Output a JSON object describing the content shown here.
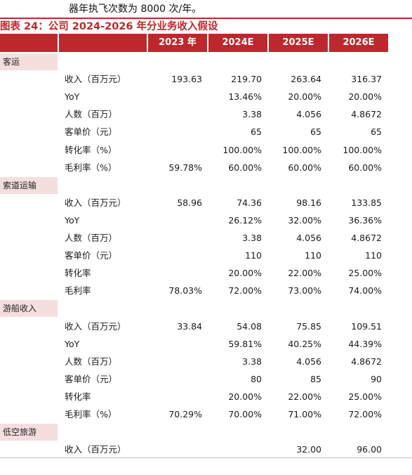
{
  "intro_text": "器年执飞次数为 8000 次/年。",
  "caption": "图表 24：公司 2024-2026 年分业务收入假设",
  "header": {
    "years": [
      "2023 年",
      "2024E",
      "2025E",
      "2026E"
    ]
  },
  "sections": [
    {
      "title": "客运",
      "rows": [
        {
          "label": "收入（百万元）",
          "values": [
            "193.63",
            "219.70",
            "263.64",
            "316.37"
          ]
        },
        {
          "label": "YoY",
          "values": [
            "",
            "13.46%",
            "20.00%",
            "20.00%"
          ]
        },
        {
          "label": "人数（百万）",
          "values": [
            "",
            "3.38",
            "4.056",
            "4.8672"
          ]
        },
        {
          "label": "客单价（元）",
          "values": [
            "",
            "65",
            "65",
            "65"
          ]
        },
        {
          "label": "转化率（%）",
          "values": [
            "",
            "100.00%",
            "100.00%",
            "100.00%"
          ]
        },
        {
          "label": "毛利率（%）",
          "values": [
            "59.78%",
            "60.00%",
            "60.00%",
            "60.00%"
          ]
        }
      ]
    },
    {
      "title": "索道运输",
      "rows": [
        {
          "label": "收入（百万元）",
          "values": [
            "58.96",
            "74.36",
            "98.16",
            "133.85"
          ]
        },
        {
          "label": "YoY",
          "values": [
            "",
            "26.12%",
            "32.00%",
            "36.36%"
          ]
        },
        {
          "label": "人数（百万）",
          "values": [
            "",
            "3.38",
            "4.056",
            "4.8672"
          ]
        },
        {
          "label": "客单价（元）",
          "values": [
            "",
            "110",
            "110",
            "110"
          ]
        },
        {
          "label": "转化率",
          "values": [
            "",
            "20.00%",
            "22.00%",
            "25.00%"
          ]
        },
        {
          "label": "毛利率",
          "values": [
            "78.03%",
            "72.00%",
            "73.00%",
            "74.00%"
          ]
        }
      ]
    },
    {
      "title": "游船收入",
      "rows": [
        {
          "label": "收入（百万元）",
          "values": [
            "33.84",
            "54.08",
            "75.85",
            "109.51"
          ]
        },
        {
          "label": "YoY",
          "values": [
            "",
            "59.81%",
            "40.25%",
            "44.39%"
          ]
        },
        {
          "label": "人数（百万）",
          "values": [
            "",
            "3.38",
            "4.056",
            "4.8672"
          ]
        },
        {
          "label": "客单价（元）",
          "values": [
            "",
            "80",
            "85",
            "90"
          ]
        },
        {
          "label": "转化率",
          "values": [
            "",
            "20.00%",
            "22.00%",
            "25.00%"
          ]
        },
        {
          "label": "毛利率（%）",
          "values": [
            "70.29%",
            "70.00%",
            "71.00%",
            "72.00%"
          ]
        }
      ]
    },
    {
      "title": "低空旅游",
      "rows": [
        {
          "label": "收入（百万元）",
          "values": [
            "",
            "",
            "32.00",
            "96.00"
          ]
        }
      ]
    }
  ]
}
